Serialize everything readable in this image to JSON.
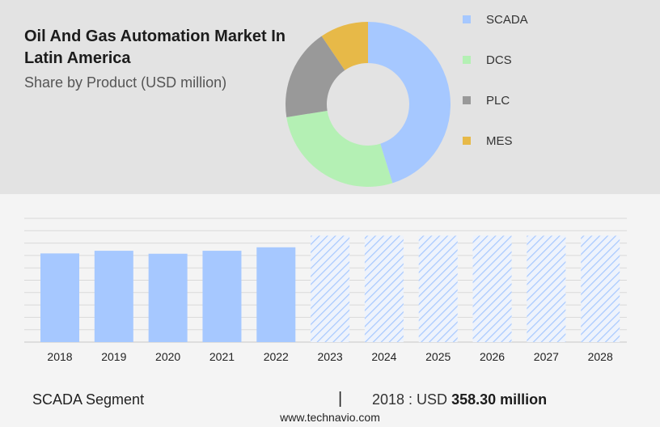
{
  "header": {
    "title": "Oil And Gas Automation Market In Latin America",
    "subtitle": "Share by Product (USD million)"
  },
  "colors": {
    "scada": "#a6c8ff",
    "dcs": "#b4f0b4",
    "plc": "#999999",
    "mes": "#e7b948",
    "forecast_hatch": "#a6c8ff"
  },
  "chart_data": [
    {
      "type": "pie",
      "donut": true,
      "labels": [
        "SCADA",
        "DCS",
        "PLC",
        "MES"
      ],
      "values": [
        45.2,
        27.3,
        18.0,
        9.5
      ],
      "legend_position": "right"
    },
    {
      "type": "bar",
      "categories": [
        "2018",
        "2019",
        "2020",
        "2021",
        "2022",
        "2023",
        "2024",
        "2025",
        "2026",
        "2027",
        "2028"
      ],
      "values": [
        358.3,
        369.0,
        357.0,
        369.0,
        383.0,
        430.0,
        430.0,
        430.0,
        430.0,
        430.0,
        430.0
      ],
      "forecast_from": "2023",
      "ylim": [
        0,
        500
      ],
      "grid": true
    }
  ],
  "bottom": {
    "segment": "SCADA Segment",
    "divider": "|",
    "stat_prefix": "2018 : USD ",
    "stat_value": "358.30 million"
  },
  "footer": {
    "source": "www.technavio.com"
  }
}
